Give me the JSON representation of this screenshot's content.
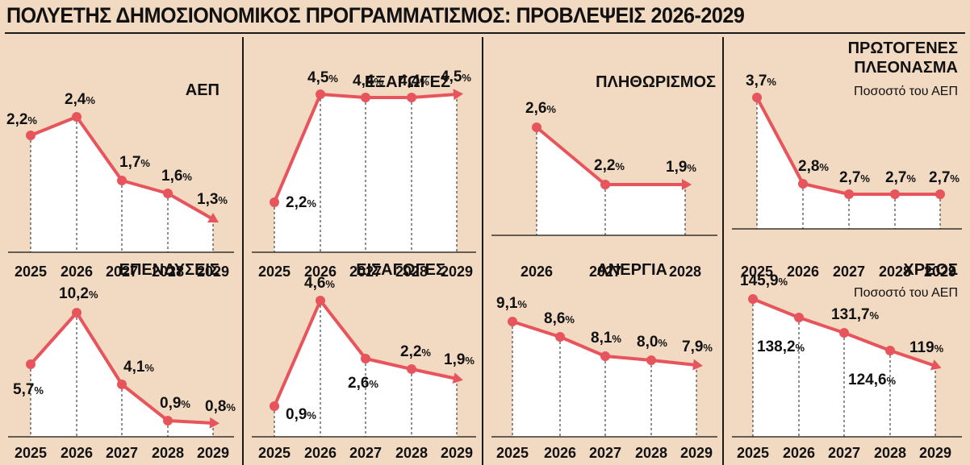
{
  "title": "ΠΟΛΥΕΤΗΣ ΔΗΜΟΣΙΟΝΟΜΙΚΟΣ ΠΡΟΓΡΑΜΜΑΤΙΣΜΟΣ: ΠΡΟΒΛΕΨΕΙΣ 2026-2029",
  "colors": {
    "background": "#f1d9c2",
    "line": "#e8545c",
    "fill": "#ffffff",
    "text": "#111111"
  },
  "chart_data": [
    {
      "id": "gdp",
      "type": "line",
      "title": "ΑΕΠ",
      "subtitle": "",
      "x": [
        "2025",
        "2026",
        "2027",
        "2028",
        "2029"
      ],
      "values": [
        2.2,
        2.4,
        1.7,
        1.6,
        1.3
      ],
      "labels": [
        "2,2",
        "2,4",
        "1,7",
        "1,6",
        "1,3"
      ],
      "unit": "%"
    },
    {
      "id": "exports",
      "type": "line",
      "title": "ΕΞΑΓΩΓΕΣ",
      "subtitle": "",
      "x": [
        "2025",
        "2026",
        "2027",
        "2028",
        "2029"
      ],
      "values": [
        2.2,
        4.5,
        4.4,
        4.4,
        4.5
      ],
      "labels": [
        "2,2",
        "4,5",
        "4,4",
        "4,4",
        "4,5"
      ],
      "unit": "%"
    },
    {
      "id": "inflation",
      "type": "line",
      "title": "ΠΛΗΘΩΡΙΣΜΟΣ",
      "subtitle": "",
      "x": [
        "2026",
        "2027",
        "2028"
      ],
      "values": [
        2.6,
        2.2,
        1.9
      ],
      "labels": [
        "2,6",
        "2,2",
        "1,9"
      ],
      "unit": "%"
    },
    {
      "id": "surplus",
      "type": "line",
      "title": "ΠΡΩΤΟΓΕΝΕΣ ΠΛΕΟΝΑΣΜΑ",
      "subtitle": "Ποσοστό του ΑΕΠ",
      "x": [
        "2025",
        "2026",
        "2027",
        "2028",
        "2029"
      ],
      "values": [
        3.7,
        2.8,
        2.7,
        2.7,
        2.7
      ],
      "labels": [
        "3,7",
        "2,8",
        "2,7",
        "2,7",
        "2,7"
      ],
      "unit": "%"
    },
    {
      "id": "investment",
      "type": "line",
      "title": "ΕΠΕΝΔΥΣΕΙΣ",
      "subtitle": "",
      "x": [
        "2025",
        "2026",
        "2027",
        "2028",
        "2029"
      ],
      "values": [
        5.7,
        10.2,
        4.1,
        0.9,
        0.8
      ],
      "labels": [
        "5,7",
        "10,2",
        "4,1",
        "0,9",
        "0,8"
      ],
      "unit": "%"
    },
    {
      "id": "imports",
      "type": "line",
      "title": "ΕΙΣΑΓΩΓΕΣ",
      "subtitle": "",
      "x": [
        "2025",
        "2026",
        "2027",
        "2028",
        "2029"
      ],
      "values": [
        0.9,
        4.6,
        2.6,
        2.2,
        1.9
      ],
      "labels": [
        "0,9",
        "4,6",
        "2,6",
        "2,2",
        "1,9"
      ],
      "unit": "%"
    },
    {
      "id": "unemployment",
      "type": "line",
      "title": "ΑΝΕΡΓΙΑ",
      "subtitle": "",
      "x": [
        "2025",
        "2026",
        "2027",
        "2028",
        "2029"
      ],
      "values": [
        9.1,
        8.6,
        8.1,
        8.0,
        7.9
      ],
      "labels": [
        "9,1",
        "8,6",
        "8,1",
        "8,0",
        "7,9"
      ],
      "unit": "%"
    },
    {
      "id": "debt",
      "type": "line",
      "title": "ΧΡΕΟΣ",
      "subtitle": "Ποσοστό του ΑΕΠ",
      "x": [
        "2025",
        "2026",
        "2027",
        "2028",
        "2029"
      ],
      "values": [
        145.9,
        138.2,
        131.7,
        124.6,
        119
      ],
      "labels": [
        "145,9",
        "138,2",
        "131,7",
        "124,6",
        "119"
      ],
      "unit": "%"
    }
  ]
}
